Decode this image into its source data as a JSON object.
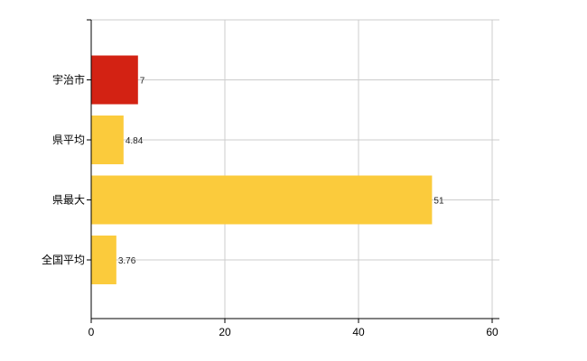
{
  "chart_data": {
    "type": "bar",
    "orientation": "horizontal",
    "categories": [
      "宇治市",
      "県平均",
      "県最大",
      "全国平均"
    ],
    "values": [
      7,
      4.84,
      51,
      3.76
    ],
    "value_labels": [
      "7",
      "4.84",
      "51",
      "3.76"
    ],
    "highlight_category": "宇治市",
    "colors": {
      "highlight": "#d32213",
      "default": "#fbcb3c",
      "grid": "#cccccc",
      "axis": "#000000"
    },
    "xlim": [
      0,
      60
    ],
    "xticks": [
      0,
      20,
      40,
      60
    ],
    "title": "",
    "xlabel": "",
    "ylabel": "",
    "grid": true,
    "legend": "none"
  }
}
